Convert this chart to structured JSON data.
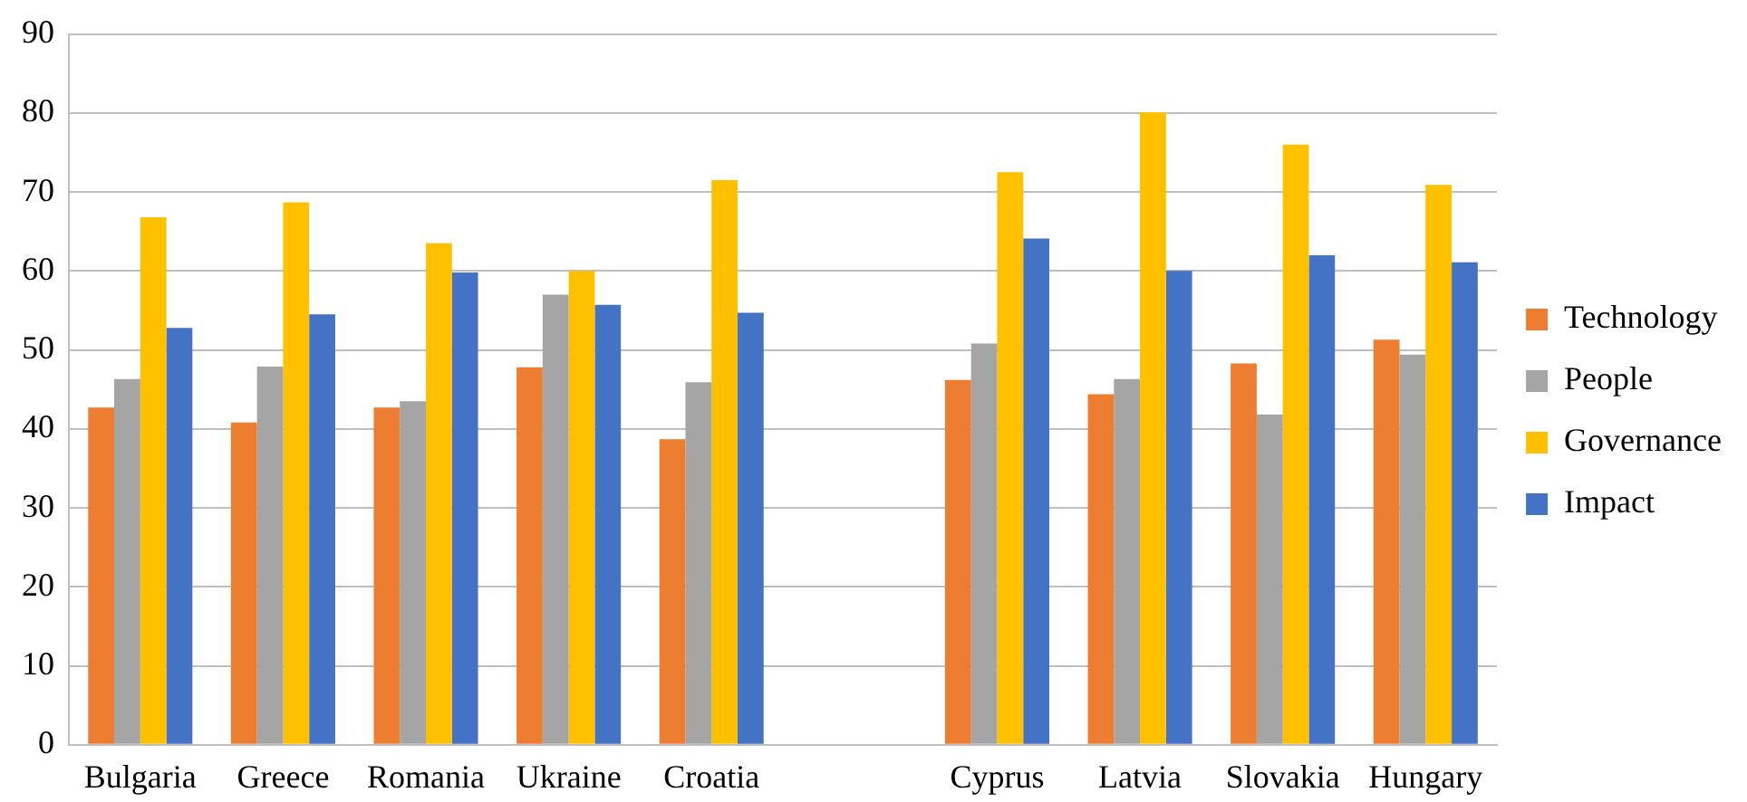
{
  "chart_data": {
    "type": "bar",
    "categories": [
      "Bulgaria",
      "Greece",
      "Romania",
      "Ukraine",
      "Croatia",
      null,
      "Cyprus",
      "Latvia",
      "Slovakia",
      "Hungary"
    ],
    "series": [
      {
        "name": "Technology",
        "color": "#ed7d31",
        "values": [
          42.7,
          40.8,
          42.7,
          47.8,
          38.7,
          null,
          46.2,
          44.4,
          48.3,
          51.3
        ]
      },
      {
        "name": "People",
        "color": "#a5a5a5",
        "values": [
          46.3,
          47.9,
          43.5,
          57.0,
          45.9,
          null,
          50.8,
          46.3,
          41.8,
          49.4
        ]
      },
      {
        "name": "Governance",
        "color": "#ffc000",
        "values": [
          66.8,
          68.7,
          63.5,
          60.0,
          71.5,
          null,
          72.5,
          80.1,
          76.0,
          70.9
        ]
      },
      {
        "name": "Impact",
        "color": "#4472c4",
        "values": [
          52.8,
          54.5,
          59.8,
          55.7,
          54.7,
          null,
          64.1,
          60.0,
          62.0,
          61.1
        ]
      }
    ],
    "ylim": [
      0,
      90
    ],
    "yticks": [
      0,
      10,
      20,
      30,
      40,
      50,
      60,
      70,
      80,
      90
    ],
    "grid": "y",
    "legend": "right"
  }
}
